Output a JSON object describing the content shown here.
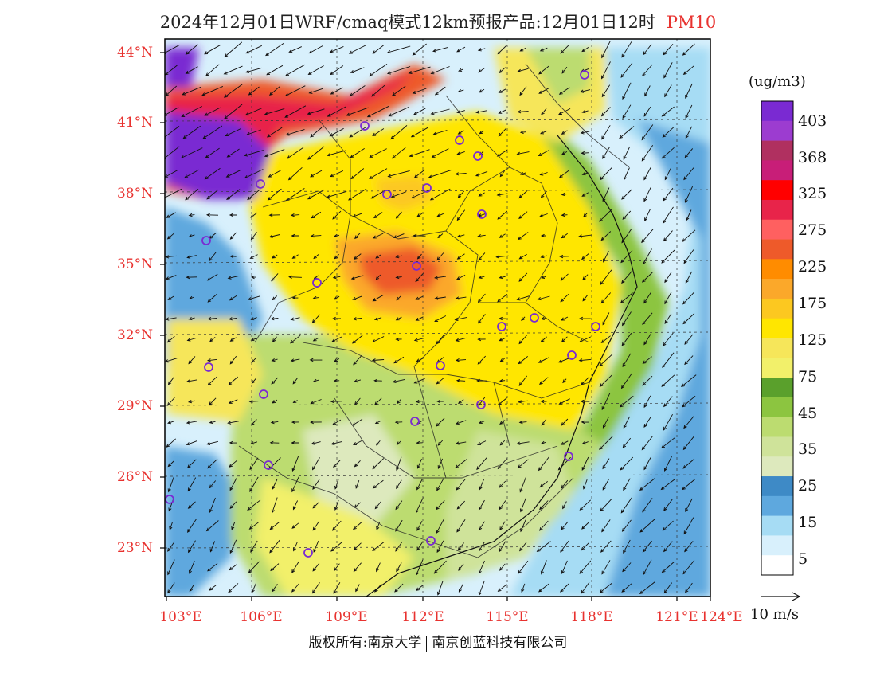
{
  "title": "2024年12月01日WRF/cmaq模式12km预报产品:12月01日12时",
  "product": "PM10",
  "lat_labels": [
    "44°N",
    "41°N",
    "38°N",
    "35°N",
    "32°N",
    "29°N",
    "26°N",
    "23°N"
  ],
  "lon_labels": [
    "103°E",
    "106°E",
    "109°E",
    "112°E",
    "115°E",
    "118°E",
    "121°E",
    "124°E"
  ],
  "legend": {
    "unit": "(ug/m3)",
    "labels": [
      "403",
      "368",
      "325",
      "275",
      "225",
      "175",
      "125",
      "75",
      "45",
      "35",
      "25",
      "15",
      "5"
    ],
    "colors": [
      "#7a2ad2",
      "#9c3cd0",
      "#b03060",
      "#c81e78",
      "#ff0000",
      "#e8244a",
      "#ff6060",
      "#ee5a2a",
      "#ff8c00",
      "#fba82a",
      "#fcc820",
      "#ffe600",
      "#f6e65a",
      "#f2f06a",
      "#5aa02c",
      "#8cc540",
      "#bcdc70",
      "#cfe39a",
      "#dde9bd",
      "#3e8ac6",
      "#5ea8de",
      "#a6dcf4",
      "#d8f0fc",
      "#ffffff"
    ],
    "wind_ref": "10 m/s"
  },
  "copyright": {
    "left": "版权所有:南京大学",
    "right": "南京创蓝科技有限公司"
  }
}
